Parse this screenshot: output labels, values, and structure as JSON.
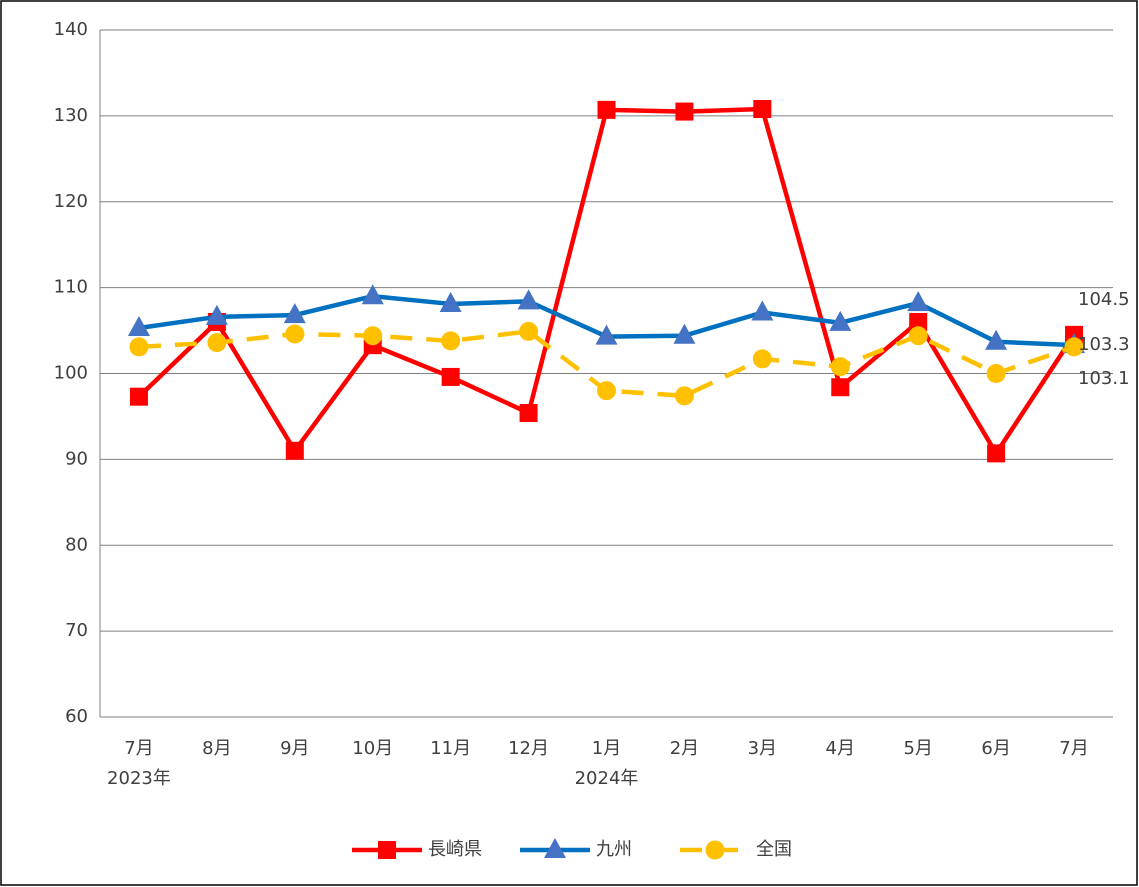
{
  "chart_data": {
    "type": "line",
    "categories": [
      "7月",
      "8月",
      "9月",
      "10月",
      "11月",
      "12月",
      "1月",
      "2月",
      "3月",
      "4月",
      "5月",
      "6月",
      "7月"
    ],
    "category_years": [
      "2023年",
      null,
      null,
      null,
      null,
      null,
      "2024年",
      null,
      null,
      null,
      null,
      null,
      null
    ],
    "series": [
      {
        "name": "長崎県",
        "color": "#ff0000",
        "marker": "square",
        "dashed": false,
        "values": [
          97.3,
          106.0,
          91.0,
          103.3,
          99.6,
          95.4,
          130.7,
          130.5,
          130.8,
          98.4,
          106.0,
          90.7,
          104.5
        ]
      },
      {
        "name": "九州",
        "color": "#0070c0",
        "marker_color": "#4472c4",
        "marker": "triangle",
        "dashed": false,
        "values": [
          105.3,
          106.6,
          106.8,
          109.0,
          108.1,
          108.4,
          104.3,
          104.4,
          107.1,
          105.9,
          108.2,
          103.7,
          103.3
        ]
      },
      {
        "name": "全国",
        "color": "#ffc000",
        "marker": "circle",
        "dashed": true,
        "values": [
          103.1,
          103.6,
          104.6,
          104.4,
          103.8,
          104.9,
          98.0,
          97.4,
          101.7,
          100.8,
          104.4,
          100.0,
          103.1
        ]
      }
    ],
    "ylim": [
      60,
      140
    ],
    "yticks": [
      60,
      70,
      80,
      90,
      100,
      110,
      120,
      130,
      140
    ],
    "grid": true,
    "legend": "bottom"
  }
}
